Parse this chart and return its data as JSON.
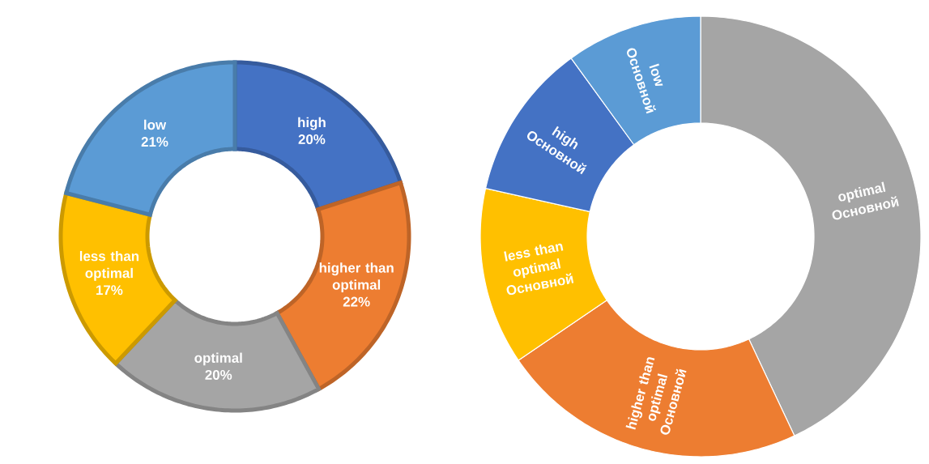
{
  "chart_data": [
    {
      "type": "donut",
      "categories": [
        "high",
        "higher than optimal",
        "optimal",
        "less than optimal",
        "low"
      ],
      "values": [
        20,
        22,
        20,
        17,
        21
      ],
      "value_labels": [
        "20%",
        "22%",
        "20%",
        "17%",
        "21%"
      ],
      "colors": [
        "#4472c4",
        "#ed7d31",
        "#a5a5a5",
        "#ffc000",
        "#5b9bd5"
      ]
    },
    {
      "type": "donut",
      "categories": [
        "optimal",
        "higher than optimal",
        "less than optimal",
        "high",
        "low"
      ],
      "series": [
        {
          "name": "Основной",
          "values": [
            43,
            22.5,
            13,
            11.5,
            10
          ]
        }
      ],
      "colors": [
        "#a5a5a5",
        "#ed7d31",
        "#ffc000",
        "#4472c4",
        "#5b9bd5"
      ]
    }
  ]
}
